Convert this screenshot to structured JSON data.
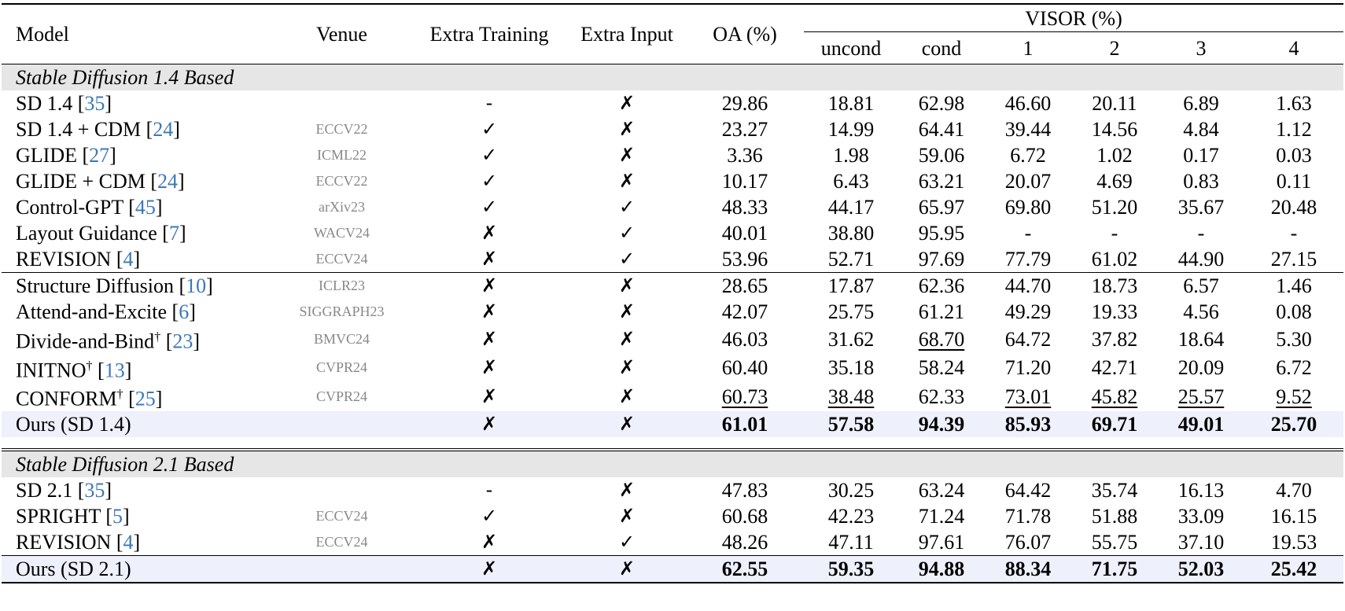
{
  "headers": {
    "model": "Model",
    "venue": "Venue",
    "extra_training": "Extra Training",
    "extra_input": "Extra Input",
    "oa": "OA (%)",
    "visor": "VISOR (%)",
    "visor_sub": [
      "uncond",
      "cond",
      "1",
      "2",
      "3",
      "4"
    ]
  },
  "marks": {
    "check": "✓",
    "cross": "✗"
  },
  "sections": [
    {
      "title": "Stable Diffusion 1.4 Based",
      "groups": [
        [
          {
            "name": "SD 1.4 [",
            "cite": "35",
            "dagger": "",
            "venue": "",
            "train": "-",
            "input": "✗",
            "vals": [
              "29.86",
              "18.81",
              "62.98",
              "46.60",
              "20.11",
              "6.89",
              "1.63"
            ]
          },
          {
            "name": "SD 1.4 + CDM [",
            "cite": "24",
            "dagger": "",
            "venue": "ECCV22",
            "train": "✓",
            "input": "✗",
            "vals": [
              "23.27",
              "14.99",
              "64.41",
              "39.44",
              "14.56",
              "4.84",
              "1.12"
            ]
          },
          {
            "name": "GLIDE [",
            "cite": "27",
            "dagger": "",
            "venue": "ICML22",
            "train": "✓",
            "input": "✗",
            "vals": [
              "3.36",
              "1.98",
              "59.06",
              "6.72",
              "1.02",
              "0.17",
              "0.03"
            ]
          },
          {
            "name": "GLIDE + CDM [",
            "cite": "24",
            "dagger": "",
            "venue": "ECCV22",
            "train": "✓",
            "input": "✗",
            "vals": [
              "10.17",
              "6.43",
              "63.21",
              "20.07",
              "4.69",
              "0.83",
              "0.11"
            ]
          },
          {
            "name": "Control-GPT [",
            "cite": "45",
            "dagger": "",
            "venue": "arXiv23",
            "train": "✓",
            "input": "✓",
            "vals": [
              "48.33",
              "44.17",
              "65.97",
              "69.80",
              "51.20",
              "35.67",
              "20.48"
            ]
          },
          {
            "name": "Layout Guidance [",
            "cite": "7",
            "dagger": "",
            "venue": "WACV24",
            "train": "✗",
            "input": "✓",
            "vals": [
              "40.01",
              "38.80",
              "95.95",
              "-",
              "-",
              "-",
              "-"
            ]
          },
          {
            "name": "REVISION [",
            "cite": "4",
            "dagger": "",
            "venue": "ECCV24",
            "train": "✗",
            "input": "✓",
            "vals": [
              "53.96",
              "52.71",
              "97.69",
              "77.79",
              "61.02",
              "44.90",
              "27.15"
            ]
          }
        ],
        [
          {
            "name": "Structure Diffusion [",
            "cite": "10",
            "dagger": "",
            "venue": "ICLR23",
            "train": "✗",
            "input": "✗",
            "vals": [
              "28.65",
              "17.87",
              "62.36",
              "44.70",
              "18.73",
              "6.57",
              "1.46"
            ]
          },
          {
            "name": "Attend-and-Excite [",
            "cite": "6",
            "dagger": "",
            "venue": "SIGGRAPH23",
            "train": "✗",
            "input": "✗",
            "vals": [
              "42.07",
              "25.75",
              "61.21",
              "49.29",
              "19.33",
              "4.56",
              "0.08"
            ]
          },
          {
            "name": "Divide-and-Bind",
            "cite": "23",
            "dagger": "†",
            "venue": "BMVC24",
            "train": "✗",
            "input": "✗",
            "vals": [
              "46.03",
              "31.62",
              "68.70",
              "64.72",
              "37.82",
              "18.64",
              "5.30"
            ]
          },
          {
            "name": "INITNO",
            "cite": "13",
            "dagger": "†",
            "venue": "CVPR24",
            "train": "✗",
            "input": "✗",
            "vals": [
              "60.40",
              "35.18",
              "58.24",
              "71.20",
              "42.71",
              "20.09",
              "6.72"
            ]
          },
          {
            "name": "CONFORM",
            "cite": "25",
            "dagger": "†",
            "venue": "CVPR24",
            "train": "✗",
            "input": "✗",
            "vals": [
              "60.73",
              "38.48",
              "62.33",
              "73.01",
              "45.82",
              "25.57",
              "9.52"
            ]
          }
        ]
      ],
      "ours": {
        "name": "Ours (SD 1.4)",
        "train": "✗",
        "input": "✗",
        "vals": [
          "61.01",
          "57.58",
          "94.39",
          "85.93",
          "69.71",
          "49.01",
          "25.70"
        ]
      }
    },
    {
      "title": "Stable Diffusion 2.1 Based",
      "groups": [
        [
          {
            "name": "SD 2.1 [",
            "cite": "35",
            "dagger": "",
            "venue": "",
            "train": "-",
            "input": "✗",
            "vals": [
              "47.83",
              "30.25",
              "63.24",
              "64.42",
              "35.74",
              "16.13",
              "4.70"
            ]
          },
          {
            "name": "SPRIGHT [",
            "cite": "5",
            "dagger": "",
            "venue": "ECCV24",
            "train": "✓",
            "input": "✗",
            "vals": [
              "60.68",
              "42.23",
              "71.24",
              "71.78",
              "51.88",
              "33.09",
              "16.15"
            ]
          },
          {
            "name": "REVISION [",
            "cite": "4",
            "dagger": "",
            "venue": "ECCV24",
            "train": "✗",
            "input": "✓",
            "vals": [
              "48.26",
              "47.11",
              "97.61",
              "76.07",
              "55.75",
              "37.10",
              "19.53"
            ]
          }
        ]
      ],
      "ours": {
        "name": "Ours (SD 2.1)",
        "train": "✗",
        "input": "✗",
        "vals": [
          "62.55",
          "59.35",
          "94.88",
          "88.34",
          "71.75",
          "52.03",
          "25.42"
        ]
      }
    }
  ]
}
